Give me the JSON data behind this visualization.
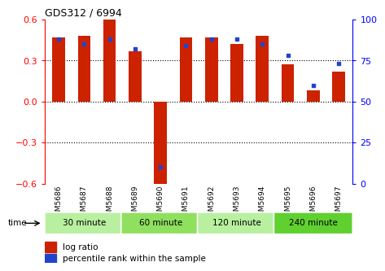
{
  "title": "GDS312 / 6994",
  "samples": [
    "GSM5686",
    "GSM5687",
    "GSM5688",
    "GSM5689",
    "GSM5690",
    "GSM5691",
    "GSM5692",
    "GSM5693",
    "GSM5694",
    "GSM5695",
    "GSM5696",
    "GSM5697"
  ],
  "log_ratio": [
    0.47,
    0.48,
    0.6,
    0.37,
    -0.62,
    0.47,
    0.47,
    0.42,
    0.48,
    0.27,
    0.08,
    0.22
  ],
  "percentile": [
    88,
    85,
    88,
    82,
    10,
    84,
    88,
    88,
    85,
    78,
    60,
    73
  ],
  "groups": [
    {
      "label": "30 minute",
      "cols": [
        0,
        1,
        2
      ],
      "color": "#b8f0a0"
    },
    {
      "label": "60 minute",
      "cols": [
        3,
        4,
        5
      ],
      "color": "#90e060"
    },
    {
      "label": "120 minute",
      "cols": [
        6,
        7,
        8
      ],
      "color": "#b8f0a0"
    },
    {
      "label": "240 minute",
      "cols": [
        9,
        10,
        11
      ],
      "color": "#60d030"
    }
  ],
  "bar_color": "#cc2200",
  "dot_color": "#2244cc",
  "ylim_left": [
    -0.6,
    0.6
  ],
  "ylim_right": [
    0,
    100
  ],
  "yticks_left": [
    -0.6,
    -0.3,
    0.0,
    0.3,
    0.6
  ],
  "yticks_right": [
    0,
    25,
    50,
    75,
    100
  ],
  "hlines": [
    0.3,
    0.0,
    -0.3
  ],
  "legend_log_ratio": "log ratio",
  "legend_percentile": "percentile rank within the sample",
  "background_color": "#ffffff",
  "bar_width": 0.5,
  "n": 12
}
